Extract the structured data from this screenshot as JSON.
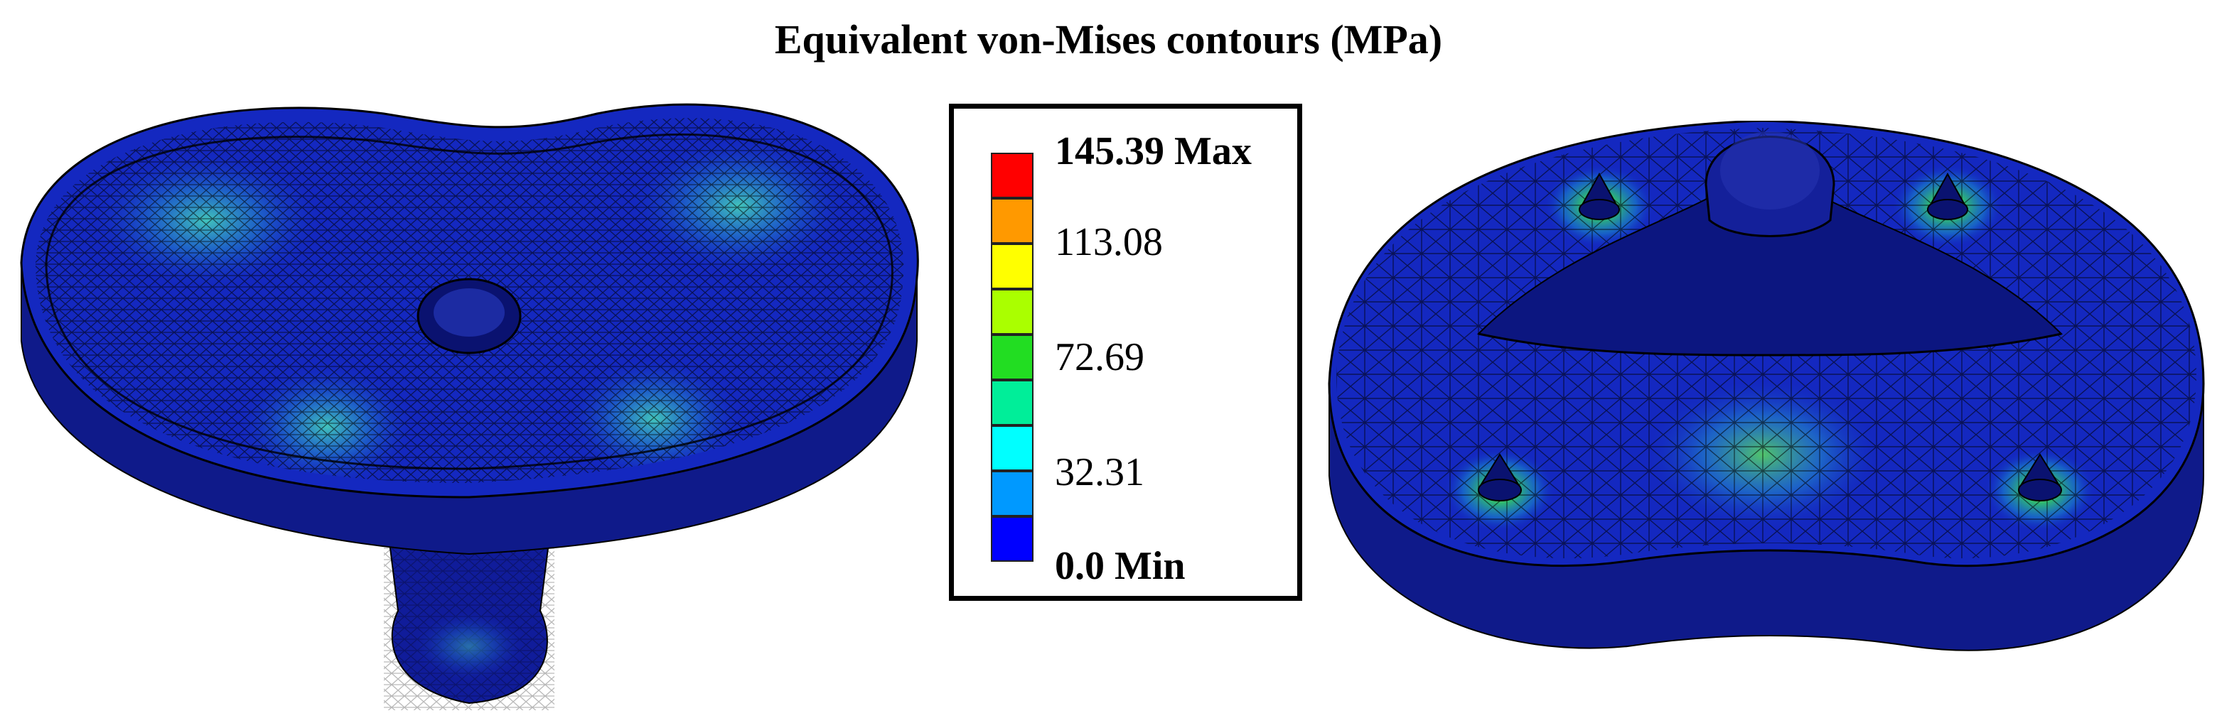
{
  "title": "Equivalent von-Mises contours (MPa)",
  "legend": {
    "max_label": "145.39 Max",
    "labels": [
      "113.08",
      "72.69",
      "32.31"
    ],
    "min_label": "0.0 Min",
    "colors": [
      "#ff0000",
      "#ff9900",
      "#ffff00",
      "#aaff00",
      "#22dd22",
      "#00ee99",
      "#00ffff",
      "#0099ff",
      "#0000ff"
    ]
  },
  "models": {
    "left": "tibial tray top view mesh",
    "right": "tibial tray bottom view mesh"
  }
}
